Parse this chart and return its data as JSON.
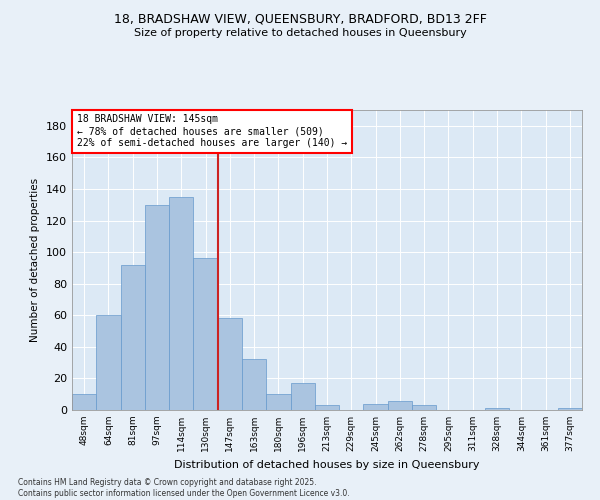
{
  "title_line1": "18, BRADSHAW VIEW, QUEENSBURY, BRADFORD, BD13 2FF",
  "title_line2": "Size of property relative to detached houses in Queensbury",
  "xlabel": "Distribution of detached houses by size in Queensbury",
  "ylabel": "Number of detached properties",
  "bg_color": "#dce9f5",
  "fig_bg_color": "#e8f0f8",
  "bar_color": "#aac4e0",
  "bar_edge_color": "#6699cc",
  "categories": [
    "48sqm",
    "64sqm",
    "81sqm",
    "97sqm",
    "114sqm",
    "130sqm",
    "147sqm",
    "163sqm",
    "180sqm",
    "196sqm",
    "213sqm",
    "229sqm",
    "245sqm",
    "262sqm",
    "278sqm",
    "295sqm",
    "311sqm",
    "328sqm",
    "344sqm",
    "361sqm",
    "377sqm"
  ],
  "values": [
    10,
    60,
    92,
    130,
    135,
    96,
    58,
    32,
    10,
    17,
    3,
    0,
    4,
    6,
    3,
    0,
    0,
    1,
    0,
    0,
    1
  ],
  "ylim": [
    0,
    190
  ],
  "yticks": [
    0,
    20,
    40,
    60,
    80,
    100,
    120,
    140,
    160,
    180
  ],
  "property_label": "18 BRADSHAW VIEW: 145sqm",
  "annotation_line1": "← 78% of detached houses are smaller (509)",
  "annotation_line2": "22% of semi-detached houses are larger (140) →",
  "vline_x": 5.5,
  "footer_line1": "Contains HM Land Registry data © Crown copyright and database right 2025.",
  "footer_line2": "Contains public sector information licensed under the Open Government Licence v3.0."
}
